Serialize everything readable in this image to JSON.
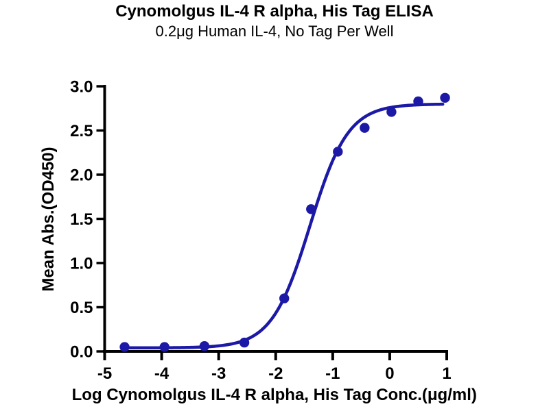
{
  "title": "Cynomolgus IL-4 R alpha, His Tag ELISA",
  "subtitle": "0.2μg Human IL-4, No Tag Per Well",
  "chart_data": {
    "type": "scatter",
    "title": "Cynomolgus IL-4 R alpha, His Tag ELISA",
    "subtitle": "0.2μg Human IL-4, No Tag Per Well",
    "xlabel": "Log Cynomolgus IL-4 R alpha, His Tag Conc.(μg/ml)",
    "ylabel": "Mean Abs.(OD450)",
    "xlim": [
      -5,
      1
    ],
    "ylim": [
      0,
      3.0
    ],
    "x_ticks": [
      -5,
      -4,
      -3,
      -2,
      -1,
      0,
      1
    ],
    "x_tick_labels": [
      "-5",
      "-4",
      "-3",
      "-2",
      "-1",
      "0",
      "1"
    ],
    "y_ticks": [
      0,
      0.5,
      1.0,
      1.5,
      2.0,
      2.5,
      3.0
    ],
    "y_tick_labels": [
      "0.0",
      "0.5",
      "1.0",
      "1.5",
      "2.0",
      "2.5",
      "3.0"
    ],
    "grid": false,
    "legend": "none",
    "marker_color": "#1c19a6",
    "line_color": "#1c19a6",
    "axis_color": "#000000",
    "points": {
      "x": [
        -4.65,
        -3.95,
        -3.25,
        -2.55,
        -1.85,
        -1.38,
        -0.91,
        -0.44,
        0.03,
        0.5,
        0.97
      ],
      "y": [
        0.05,
        0.05,
        0.06,
        0.1,
        0.6,
        1.61,
        2.26,
        2.53,
        2.71,
        2.83,
        2.87
      ]
    },
    "fit_curve": {
      "model": "4PL",
      "bottom": 0.04,
      "top": 2.8,
      "log_ec50": -1.4,
      "hill": 1.3,
      "x_start": -4.65,
      "x_end": 0.93
    }
  }
}
